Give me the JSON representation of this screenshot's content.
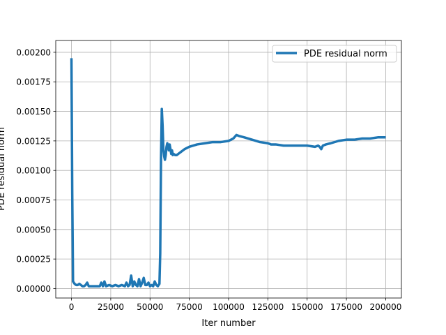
{
  "chart_data": {
    "type": "line",
    "title": "",
    "xlabel": "Iter number",
    "ylabel": "PDE residual norm",
    "xlim": [
      -10000,
      210000
    ],
    "ylim": [
      -8e-05,
      0.0021
    ],
    "xticks": [
      0,
      25000,
      50000,
      75000,
      100000,
      125000,
      150000,
      175000,
      200000
    ],
    "xtick_labels": [
      "0",
      "25000",
      "50000",
      "75000",
      "100000",
      "125000",
      "150000",
      "175000",
      "200000"
    ],
    "yticks": [
      0.0,
      0.00025,
      0.0005,
      0.00075,
      0.001,
      0.00125,
      0.0015,
      0.00175,
      0.002
    ],
    "ytick_labels": [
      "0.00000",
      "0.00025",
      "0.00050",
      "0.00075",
      "0.00100",
      "0.00125",
      "0.00150",
      "0.00175",
      "0.00200"
    ],
    "grid": true,
    "legend_position": "top-right",
    "series": [
      {
        "name": "PDE residual norm",
        "color": "#1f77b4",
        "x": [
          0,
          500,
          1000,
          2000,
          3000,
          4000,
          5000,
          6000,
          7000,
          8000,
          9000,
          10000,
          11000,
          12000,
          14000,
          16000,
          18000,
          19000,
          20000,
          21000,
          22000,
          24000,
          26000,
          28000,
          30000,
          32000,
          34000,
          35000,
          36000,
          37000,
          38000,
          39000,
          40000,
          41000,
          42000,
          43000,
          44000,
          45000,
          46000,
          47000,
          48000,
          49000,
          50000,
          51000,
          52000,
          53000,
          54000,
          55000,
          56000,
          56500,
          57000,
          57500,
          58000,
          58500,
          59000,
          59500,
          60000,
          60500,
          61000,
          61500,
          62000,
          62500,
          63000,
          63500,
          64000,
          64500,
          65000,
          66000,
          67000,
          68000,
          70000,
          72000,
          75000,
          80000,
          85000,
          90000,
          95000,
          100000,
          103000,
          105000,
          107000,
          110000,
          115000,
          120000,
          125000,
          127000,
          130000,
          135000,
          140000,
          145000,
          150000,
          155000,
          157000,
          158000,
          159000,
          160000,
          162000,
          165000,
          170000,
          175000,
          180000,
          185000,
          190000,
          195000,
          200000
        ],
        "y": [
          0.00195,
          0.0008,
          6e-05,
          4e-05,
          3e-05,
          3e-05,
          4e-05,
          3e-05,
          2e-05,
          2e-05,
          3e-05,
          5e-05,
          2e-05,
          2e-05,
          2e-05,
          2e-05,
          2e-05,
          5e-05,
          2e-05,
          6e-05,
          2e-05,
          3e-05,
          2e-05,
          3e-05,
          2e-05,
          3e-05,
          2e-05,
          5e-05,
          2e-05,
          3e-05,
          0.00011,
          2e-05,
          6e-05,
          3e-05,
          2e-05,
          8e-05,
          2e-05,
          5e-05,
          9e-05,
          3e-05,
          3e-05,
          5e-05,
          2e-05,
          3e-05,
          2e-05,
          6e-05,
          3e-05,
          2e-05,
          4e-05,
          0.0003,
          0.0011,
          0.00152,
          0.00138,
          0.00118,
          0.00112,
          0.00109,
          0.00113,
          0.0012,
          0.00123,
          0.00121,
          0.00117,
          0.00122,
          0.00118,
          0.00114,
          0.00117,
          0.00113,
          0.00114,
          0.00113,
          0.00113,
          0.00114,
          0.00116,
          0.00118,
          0.0012,
          0.00122,
          0.00123,
          0.00124,
          0.00124,
          0.00125,
          0.00127,
          0.0013,
          0.00129,
          0.00128,
          0.00126,
          0.00124,
          0.00123,
          0.00122,
          0.00122,
          0.00121,
          0.00121,
          0.00121,
          0.00121,
          0.0012,
          0.00121,
          0.0012,
          0.00118,
          0.00121,
          0.00122,
          0.00123,
          0.00125,
          0.00126,
          0.00126,
          0.00127,
          0.00127,
          0.00128,
          0.00128
        ]
      }
    ]
  }
}
